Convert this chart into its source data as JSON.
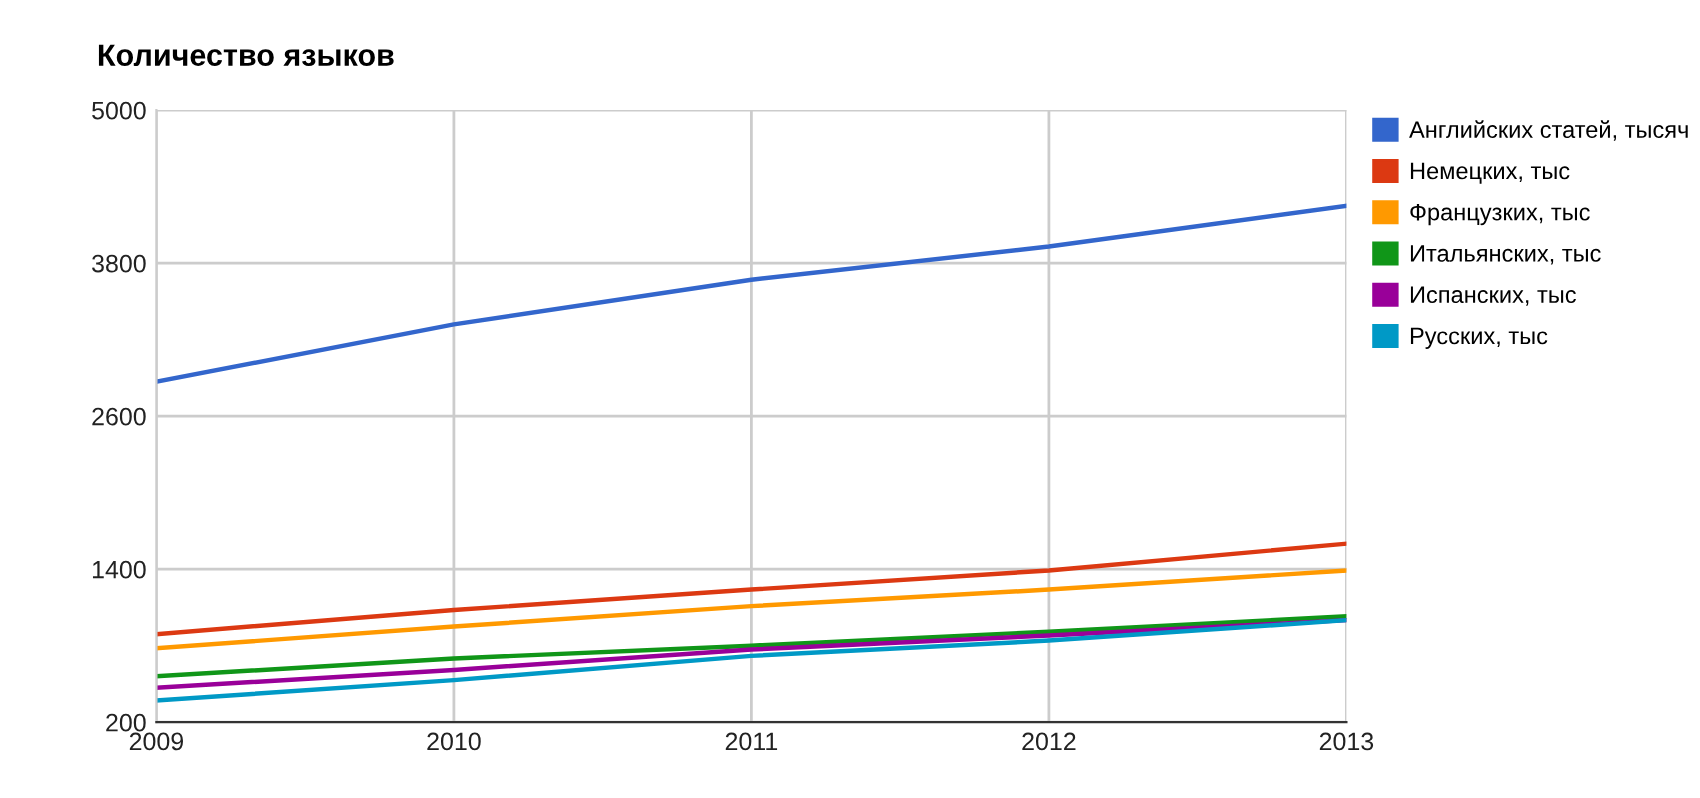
{
  "chart_data": {
    "type": "line",
    "title": "Количество языков",
    "x": [
      2009,
      2010,
      2011,
      2012,
      2013
    ],
    "series": [
      {
        "name": "Английских статей, тысяч",
        "color": "#3366cc",
        "values": [
          2870,
          3320,
          3670,
          3930,
          4250
        ]
      },
      {
        "name": "Немецких, тыс",
        "color": "#dc3912",
        "values": [
          890,
          1080,
          1240,
          1390,
          1600
        ]
      },
      {
        "name": "Французких, тыс",
        "color": "#ff9900",
        "values": [
          780,
          950,
          1110,
          1240,
          1390
        ]
      },
      {
        "name": "Итальянских, тыс",
        "color": "#109618",
        "values": [
          560,
          700,
          800,
          910,
          1030
        ]
      },
      {
        "name": "Испанских, тыс",
        "color": "#990099",
        "values": [
          470,
          610,
          770,
          880,
          1000
        ]
      },
      {
        "name": "Русских, тыс",
        "color": "#0099c6",
        "values": [
          370,
          530,
          720,
          840,
          1000
        ]
      }
    ],
    "xlim": [
      2009,
      2013
    ],
    "xticks": [
      2009,
      2010,
      2011,
      2012,
      2013
    ],
    "ylim": [
      200,
      5000
    ],
    "yticks": [
      200,
      1400,
      2600,
      3800,
      5000
    ],
    "grid": true,
    "legend": "top right",
    "marker": "none",
    "line_style": "solid"
  }
}
